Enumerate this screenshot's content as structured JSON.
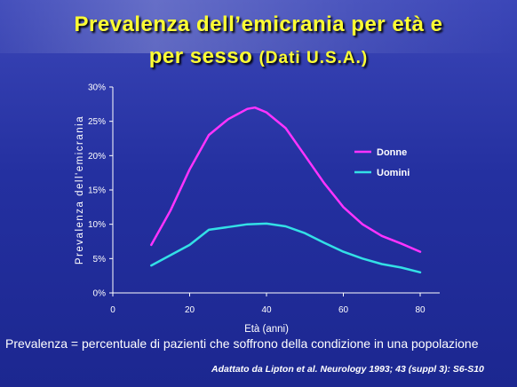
{
  "title": {
    "line1": "Prevalenza dell’emicrania per età e",
    "line2_main": "per sesso",
    "line2_note": "(Dati U.S.A.)"
  },
  "chart_data": {
    "type": "line",
    "xlabel": "Età (anni)",
    "ylabel": "Prevalenza dell'emicrania",
    "xlim": [
      0,
      80
    ],
    "ylim": [
      0,
      30
    ],
    "x_ticks": [
      "0",
      "20",
      "40",
      "60",
      "80"
    ],
    "y_ticks": [
      "0%",
      "5%",
      "10%",
      "15%",
      "20%",
      "25%",
      "30%"
    ],
    "grid": false,
    "legend_position": "right",
    "series": [
      {
        "name": "Donne",
        "color": "#ff33ff",
        "x": [
          10,
          15,
          20,
          25,
          30,
          35,
          37,
          40,
          45,
          50,
          55,
          60,
          65,
          70,
          75,
          80
        ],
        "y": [
          7,
          12,
          18,
          23,
          25.3,
          26.8,
          27,
          26.3,
          24,
          20,
          16,
          12.5,
          10,
          8.3,
          7.2,
          6
        ]
      },
      {
        "name": "Uomini",
        "color": "#33e0e6",
        "x": [
          10,
          15,
          20,
          25,
          30,
          35,
          40,
          45,
          50,
          55,
          60,
          65,
          70,
          75,
          80
        ],
        "y": [
          4,
          5.5,
          7,
          9.2,
          9.6,
          10,
          10.1,
          9.7,
          8.7,
          7.3,
          6,
          5,
          4.2,
          3.7,
          3
        ]
      }
    ]
  },
  "note": "Prevalenza = percentuale di pazienti che soffrono della condizione in una popolazione",
  "source": "Adattato da Lipton et al. Neurology 1993; 43 (suppl 3): S6-S10"
}
